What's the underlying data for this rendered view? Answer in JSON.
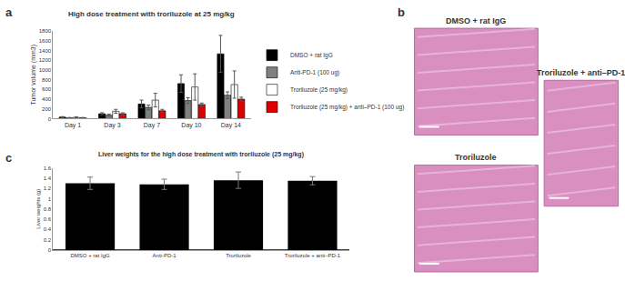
{
  "chart_data": [
    {
      "type": "bar",
      "panel_label": "a",
      "title": "High dose treatment with troriluzole at 25 mg/kg",
      "y_label": "Tumor volume (mm3)",
      "categories": [
        "Day 1",
        "Day 3",
        "Day 7",
        "Day 10",
        "Day 14"
      ],
      "series": [
        {
          "name": "DMSO + rat IgG",
          "color": "#000000",
          "values": [
            30,
            100,
            300,
            720,
            1330
          ],
          "errors": [
            10,
            20,
            80,
            180,
            380
          ]
        },
        {
          "name": "Anti-PD-1 (100 ug)",
          "color": "#808080",
          "values": [
            15,
            70,
            230,
            370,
            480
          ],
          "errors": [
            8,
            20,
            50,
            60,
            70
          ]
        },
        {
          "name": "Troriluzole (25 mg/kg)",
          "color": "#ffffff",
          "values": [
            25,
            150,
            380,
            650,
            700
          ],
          "errors": [
            10,
            40,
            140,
            270,
            280
          ]
        },
        {
          "name": "Troriluzole (25 mg/kg) + anti–PD-1 (100 ug)",
          "color": "#e00000",
          "values": [
            15,
            100,
            160,
            290,
            400
          ],
          "errors": [
            8,
            20,
            30,
            30,
            40
          ]
        }
      ],
      "ylim": [
        0,
        1800
      ],
      "yticks": [
        0,
        200,
        400,
        600,
        800,
        1000,
        1200,
        1400,
        1600,
        1800
      ],
      "grid": false,
      "legend": "right"
    },
    {
      "type": "bar",
      "panel_label": "c",
      "title": "Liver weights for the high dose treatment with troriluzole (25 mg/kg)",
      "y_label": "Liver weights (g)",
      "categories": [
        "DMSO + rat IgG",
        "Anti-PD-1",
        "Troriluzole",
        "Troriluzole + anti–PD-1"
      ],
      "values": [
        1.3,
        1.28,
        1.36,
        1.35
      ],
      "errors": [
        0.12,
        0.1,
        0.16,
        0.08
      ],
      "color": "#000000",
      "ylim": [
        0,
        1.6
      ],
      "yticks": [
        0,
        0.2,
        0.4,
        0.6,
        0.8,
        1,
        1.2,
        1.4,
        1.6
      ],
      "grid": false
    }
  ],
  "panel_b": {
    "panel_label": "b",
    "images": [
      {
        "title": "DMSO + rat IgG"
      },
      {
        "title": "Troriluzole"
      },
      {
        "title": "Troriluzole + anti–PD-1"
      }
    ]
  }
}
